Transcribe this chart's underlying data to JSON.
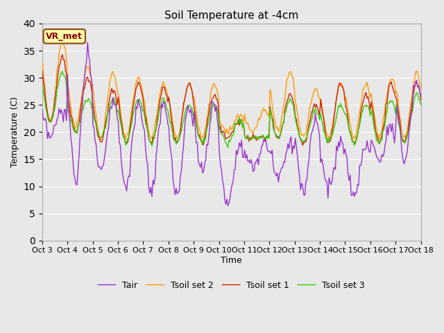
{
  "title": "Soil Temperature at -4cm",
  "xlabel": "Time",
  "ylabel": "Temperature (C)",
  "ylim": [
    0,
    40
  ],
  "yticks": [
    0,
    5,
    10,
    15,
    20,
    25,
    30,
    35,
    40
  ],
  "x_labels": [
    "Oct 3",
    "Oct 4",
    "Oct 5",
    "Oct 6",
    "Oct 7",
    "Oct 8",
    "Oct 9",
    "Oct 10",
    "Oct 11",
    "Oct 12",
    "Oct 13",
    "Oct 14",
    "Oct 15",
    "Oct 16",
    "Oct 17",
    "Oct 18"
  ],
  "annotation": "VR_met",
  "bg_color": "#e8e8e8",
  "fig_color": "#e8e8e8",
  "line_colors": {
    "Tair": "#9933cc",
    "Tsoil_set1": "#cc2200",
    "Tsoil_set2": "#ff9900",
    "Tsoil_set3": "#33cc00"
  },
  "legend_labels": [
    "Tair",
    "Tsoil set 1",
    "Tsoil set 2",
    "Tsoil set 3"
  ],
  "n_days": 15,
  "pts_per_day": 24
}
